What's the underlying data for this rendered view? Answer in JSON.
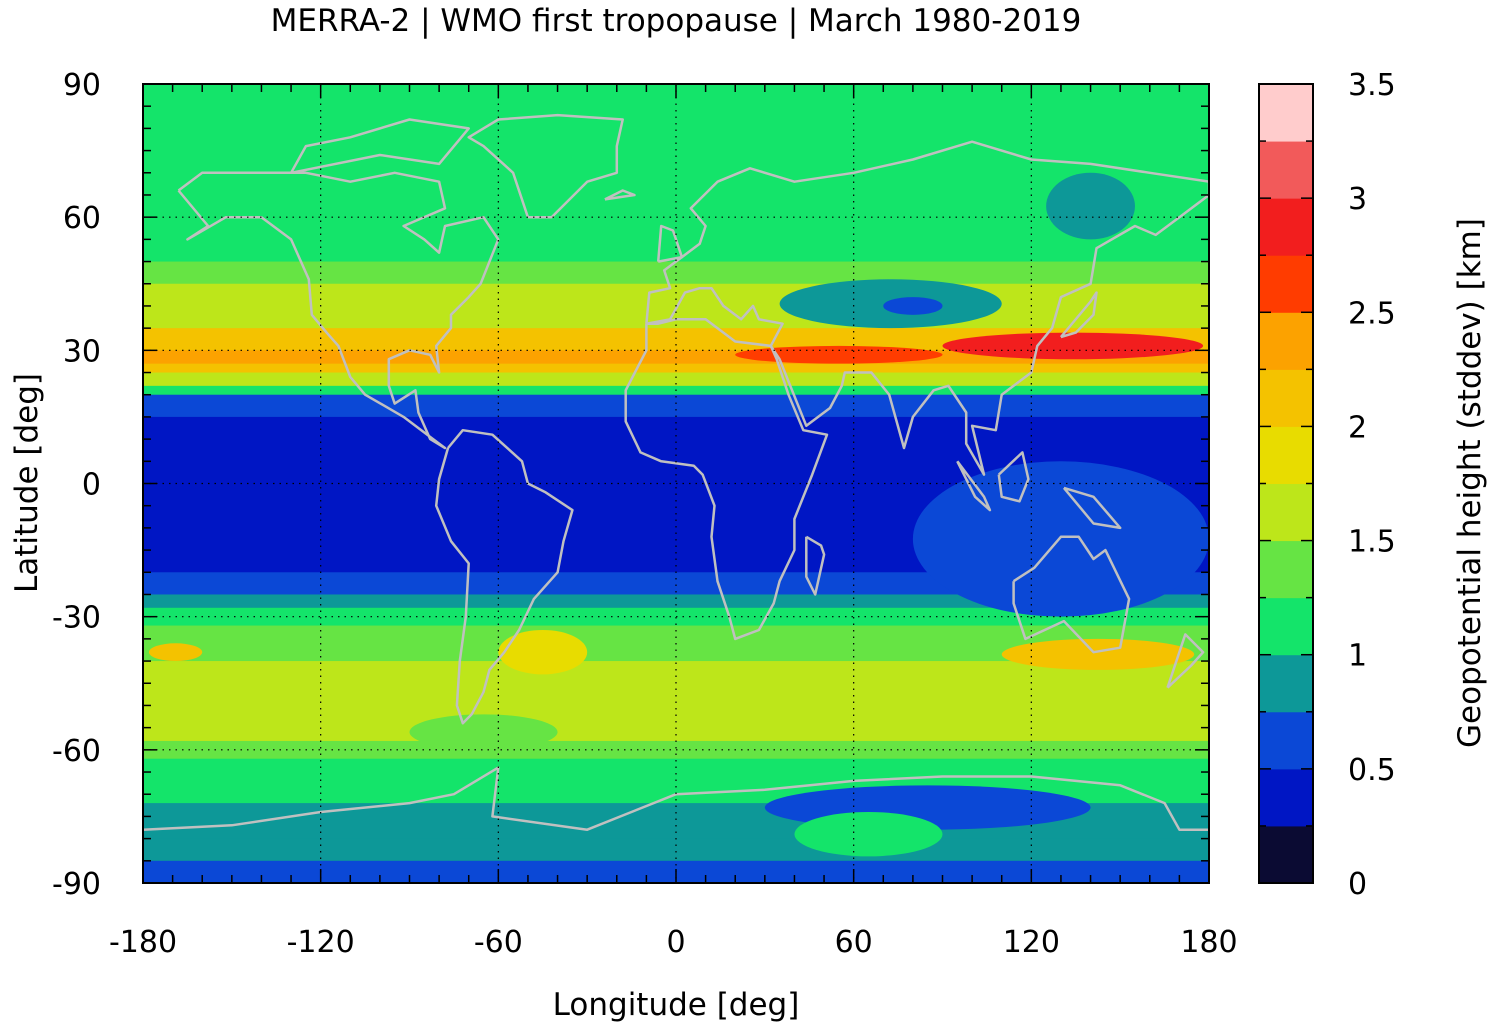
{
  "chart_data": {
    "type": "heatmap",
    "title": "MERRA-2 | WMO first tropopause | March 1980-2019",
    "xlabel": "Longitude [deg]",
    "ylabel": "Latitude [deg]",
    "colorbar_label": "Geopotential height (stddev) [km]",
    "xlim": [
      -180,
      180
    ],
    "ylim": [
      -90,
      90
    ],
    "x_ticks": [
      "-180",
      "-120",
      "-60",
      "0",
      "60",
      "120",
      "180"
    ],
    "y_ticks": [
      "90",
      "60",
      "30",
      "0",
      "-30",
      "-60",
      "-90"
    ],
    "colorbar_range": [
      0,
      3.5
    ],
    "colorbar_ticks": [
      "0",
      "0.5",
      "1",
      "1.5",
      "2",
      "2.5",
      "3",
      "3.5"
    ],
    "color_levels": [
      {
        "from": 0.0,
        "to": 0.25,
        "color": "#0b0b33"
      },
      {
        "from": 0.25,
        "to": 0.5,
        "color": "#0016c4"
      },
      {
        "from": 0.5,
        "to": 0.75,
        "color": "#0b48d6"
      },
      {
        "from": 0.75,
        "to": 1.0,
        "color": "#0d9898"
      },
      {
        "from": 1.0,
        "to": 1.25,
        "color": "#14e46a"
      },
      {
        "from": 1.25,
        "to": 1.5,
        "color": "#66e444"
      },
      {
        "from": 1.5,
        "to": 1.75,
        "color": "#bde61a"
      },
      {
        "from": 1.75,
        "to": 2.0,
        "color": "#e8dc00"
      },
      {
        "from": 2.0,
        "to": 2.25,
        "color": "#f4c200"
      },
      {
        "from": 2.25,
        "to": 2.5,
        "color": "#fca200"
      },
      {
        "from": 2.5,
        "to": 2.75,
        "color": "#ff3c00"
      },
      {
        "from": 2.75,
        "to": 3.0,
        "color": "#f21e1e"
      },
      {
        "from": 3.0,
        "to": 3.25,
        "color": "#f25a5a"
      },
      {
        "from": 3.25,
        "to": 3.5,
        "color": "#ffcccc"
      }
    ],
    "zonal_profile": [
      {
        "lat": 90,
        "value": 1.1
      },
      {
        "lat": 80,
        "value": 1.1
      },
      {
        "lat": 70,
        "value": 1.2
      },
      {
        "lat": 60,
        "value": 1.2
      },
      {
        "lat": 50,
        "value": 1.4
      },
      {
        "lat": 45,
        "value": 1.5
      },
      {
        "lat": 40,
        "value": 1.7
      },
      {
        "lat": 35,
        "value": 2.0
      },
      {
        "lat": 30,
        "value": 2.4
      },
      {
        "lat": 27,
        "value": 2.2
      },
      {
        "lat": 25,
        "value": 1.6
      },
      {
        "lat": 22,
        "value": 1.0
      },
      {
        "lat": 20,
        "value": 0.7
      },
      {
        "lat": 15,
        "value": 0.4
      },
      {
        "lat": 0,
        "value": 0.4
      },
      {
        "lat": -10,
        "value": 0.4
      },
      {
        "lat": -20,
        "value": 0.6
      },
      {
        "lat": -25,
        "value": 0.9
      },
      {
        "lat": -28,
        "value": 1.1
      },
      {
        "lat": -32,
        "value": 1.4
      },
      {
        "lat": -40,
        "value": 1.7
      },
      {
        "lat": -50,
        "value": 1.6
      },
      {
        "lat": -58,
        "value": 1.4
      },
      {
        "lat": -62,
        "value": 1.2
      },
      {
        "lat": -67,
        "value": 1.1
      },
      {
        "lat": -72,
        "value": 0.9
      },
      {
        "lat": -80,
        "value": 0.9
      },
      {
        "lat": -85,
        "value": 0.6
      },
      {
        "lat": -90,
        "value": 0.6
      }
    ],
    "regional_features": [
      {
        "lon": [
          90,
          178
        ],
        "lat": [
          28,
          34
        ],
        "value": 2.8
      },
      {
        "lon": [
          20,
          90
        ],
        "lat": [
          27,
          31
        ],
        "value": 2.7
      },
      {
        "lon": [
          -178,
          -160
        ],
        "lat": [
          -40,
          -36
        ],
        "value": 2.1
      },
      {
        "lon": [
          -60,
          -30
        ],
        "lat": [
          -43,
          -33
        ],
        "value": 1.9
      },
      {
        "lon": [
          110,
          175
        ],
        "lat": [
          -42,
          -35
        ],
        "value": 2.0
      },
      {
        "lon": [
          125,
          155
        ],
        "lat": [
          55,
          70
        ],
        "value": 0.9
      },
      {
        "lon": [
          35,
          110
        ],
        "lat": [
          35,
          46
        ],
        "value": 0.9
      },
      {
        "lon": [
          70,
          90
        ],
        "lat": [
          38,
          42
        ],
        "value": 0.6
      },
      {
        "lon": [
          30,
          140
        ],
        "lat": [
          -78,
          -68
        ],
        "value": 0.6
      },
      {
        "lon": [
          40,
          90
        ],
        "lat": [
          -84,
          -74
        ],
        "value": 1.2
      },
      {
        "lon": [
          -90,
          -40
        ],
        "lat": [
          -60,
          -52
        ],
        "value": 1.3
      },
      {
        "lon": [
          80,
          180
        ],
        "lat": [
          -30,
          5
        ],
        "value": 0.5
      }
    ],
    "grid": true,
    "overlay": "coastlines"
  }
}
